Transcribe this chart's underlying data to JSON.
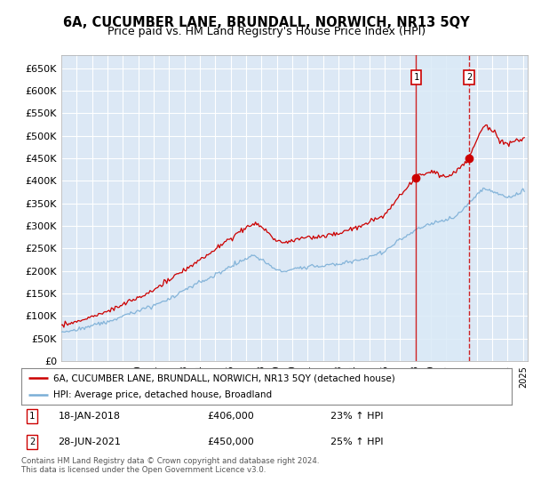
{
  "title": "6A, CUCUMBER LANE, BRUNDALL, NORWICH, NR13 5QY",
  "subtitle": "Price paid vs. HM Land Registry's House Price Index (HPI)",
  "ylim": [
    0,
    680000
  ],
  "yticks": [
    0,
    50000,
    100000,
    150000,
    200000,
    250000,
    300000,
    350000,
    400000,
    450000,
    500000,
    550000,
    600000,
    650000
  ],
  "ytick_labels": [
    "£0",
    "£50K",
    "£100K",
    "£150K",
    "£200K",
    "£250K",
    "£300K",
    "£350K",
    "£400K",
    "£450K",
    "£500K",
    "£550K",
    "£600K",
    "£650K"
  ],
  "xlim_start": 1995.0,
  "xlim_end": 2025.3,
  "background_color": "#ffffff",
  "plot_bg_color": "#dce8f5",
  "grid_color": "#ffffff",
  "red_line_color": "#cc0000",
  "blue_line_color": "#7aaed6",
  "shade_color": "#c8daf0",
  "sale1_x": 2018.05,
  "sale1_y": 406000,
  "sale2_x": 2021.5,
  "sale2_y": 450000,
  "legend_label_red": "6A, CUCUMBER LANE, BRUNDALL, NORWICH, NR13 5QY (detached house)",
  "legend_label_blue": "HPI: Average price, detached house, Broadland",
  "sale1_date": "18-JAN-2018",
  "sale1_price": "£406,000",
  "sale1_hpi": "23% ↑ HPI",
  "sale2_date": "28-JUN-2021",
  "sale2_price": "£450,000",
  "sale2_hpi": "25% ↑ HPI",
  "footer": "Contains HM Land Registry data © Crown copyright and database right 2024.\nThis data is licensed under the Open Government Licence v3.0.",
  "title_fontsize": 10.5,
  "subtitle_fontsize": 9,
  "axis_fontsize": 8,
  "legend_fontsize": 7.5,
  "annotation_fontsize": 8
}
